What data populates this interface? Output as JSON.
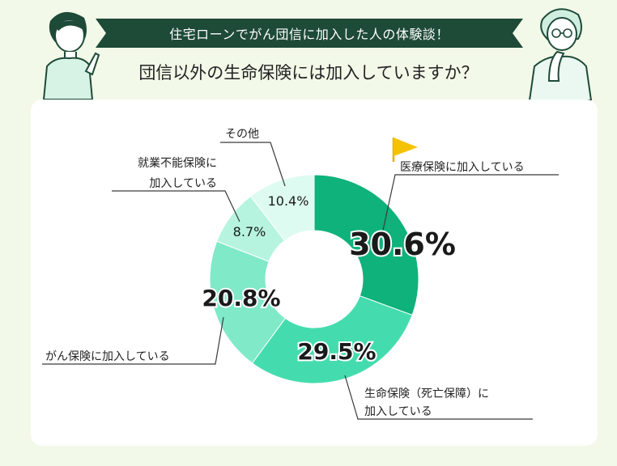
{
  "header": {
    "banner": "住宅ローンでがん団信に加入した人の体験談！",
    "question": "団信以外の生命保険には加入していますか？"
  },
  "colors": {
    "banner_bg": "#1e4a38",
    "page_bg": "#f2f9e8",
    "accent_flag": "#f5c200"
  },
  "chart_data": {
    "type": "pie",
    "donut": true,
    "unit": "%",
    "series": [
      {
        "label": "医療保険に加入している",
        "value": 30.6,
        "color": "#0fb27a"
      },
      {
        "label": "生命保険（死亡保障）に加入している",
        "value": 29.5,
        "color": "#44dcae"
      },
      {
        "label": "がん保険に加入している",
        "value": 20.8,
        "color": "#7fe9c8"
      },
      {
        "label": "就業不能保険に加入している",
        "value": 8.7,
        "color": "#b6f4e0"
      },
      {
        "label": "その他",
        "value": 10.4,
        "color": "#ddfbf1"
      }
    ]
  },
  "callouts": {
    "medical": "医療保険に加入している",
    "life_line1": "生命保険（死亡保障）に",
    "life_line2": "加入している",
    "cancer": "がん保険に加入している",
    "disability_line1": "就業不能保険に",
    "disability_line2": "加入している",
    "other": "その他"
  },
  "value_labels": {
    "medical": "30.6%",
    "life": "29.5%",
    "cancer": "20.8%",
    "disability": "8.7%",
    "other": "10.4%"
  }
}
